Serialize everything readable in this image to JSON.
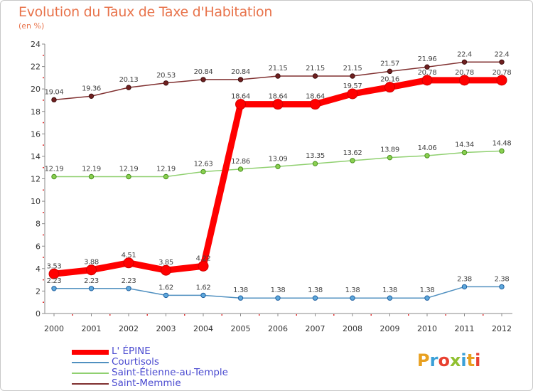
{
  "title": "Evolution du Taux de Taxe d'Habitation",
  "subtitle": "(en %)",
  "logo": {
    "text": "Proxiti",
    "colors": [
      "#e8a020",
      "#3aa0d8",
      "#e84030",
      "#90c030",
      "#3aa0d8",
      "#e8a020",
      "#e84030"
    ]
  },
  "chart_data": {
    "type": "line",
    "x": [
      "2000",
      "2001",
      "2002",
      "2003",
      "2004",
      "2005",
      "2006",
      "2007",
      "2008",
      "2009",
      "2010",
      "2011",
      "2012"
    ],
    "ylim": [
      0,
      24
    ],
    "yticks": [
      "0",
      "2",
      "4",
      "6",
      "8",
      "10",
      "12",
      "14",
      "16",
      "18",
      "20",
      "22",
      "24"
    ],
    "grid": false,
    "legend_position": "bottom-left",
    "series": [
      {
        "name": "L' ÉPINE",
        "color": "#ff0000",
        "values": [
          3.53,
          3.88,
          4.51,
          3.85,
          4.22,
          18.64,
          18.64,
          18.64,
          19.57,
          20.16,
          20.78,
          20.78,
          20.78
        ],
        "labels": [
          "3.53",
          "3.88",
          "4.51",
          "3.85",
          "4.22",
          "18.64",
          "18.64",
          "18.64",
          "19.57",
          "20.16",
          "20.78",
          "20.78",
          "20.78"
        ]
      },
      {
        "name": "Courtisols",
        "color": "#5090c0",
        "values": [
          2.23,
          2.23,
          2.23,
          1.62,
          1.62,
          1.38,
          1.38,
          1.38,
          1.38,
          1.38,
          1.38,
          2.38,
          2.38
        ],
        "labels": [
          "2.23",
          "2.23",
          "2.23",
          "1.62",
          "1.62",
          "1.38",
          "1.38",
          "1.38",
          "1.38",
          "1.38",
          "1.38",
          "2.38",
          "2.38"
        ]
      },
      {
        "name": "Saint-Étienne-au-Temple",
        "color": "#90d070",
        "values": [
          12.19,
          12.19,
          12.19,
          12.19,
          12.63,
          12.86,
          13.09,
          13.35,
          13.62,
          13.89,
          14.06,
          14.34,
          14.48
        ],
        "labels": [
          "12.19",
          "12.19",
          "12.19",
          "12.19",
          "12.63",
          "12.86",
          "13.09",
          "13.35",
          "13.62",
          "13.89",
          "14.06",
          "14.34",
          "14.48"
        ]
      },
      {
        "name": "Saint-Memmie",
        "color": "#803030",
        "values": [
          19.04,
          19.36,
          20.13,
          20.53,
          20.84,
          20.84,
          21.15,
          21.15,
          21.15,
          21.57,
          21.96,
          22.4,
          22.4
        ],
        "labels": [
          "19.04",
          "19.36",
          "20.13",
          "20.53",
          "20.84",
          "20.84",
          "21.15",
          "21.15",
          "21.15",
          "21.57",
          "21.96",
          "22.4",
          "22.4"
        ]
      }
    ]
  }
}
